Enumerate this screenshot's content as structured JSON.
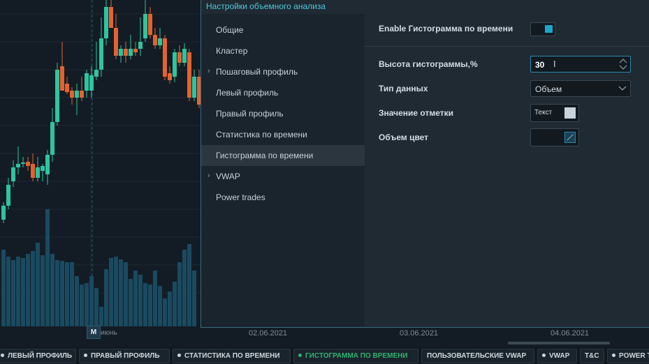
{
  "dialog": {
    "title": "Настройки объемного анализа",
    "sidebar": [
      {
        "label": "Общие",
        "expandable": false,
        "active": false
      },
      {
        "label": "Кластер",
        "expandable": false,
        "active": false
      },
      {
        "label": "Пошаговый профиль",
        "expandable": true,
        "active": false
      },
      {
        "label": "Левый профиль",
        "expandable": false,
        "active": false
      },
      {
        "label": "Правый профиль",
        "expandable": false,
        "active": false
      },
      {
        "label": "Статистика по времени",
        "expandable": false,
        "active": false
      },
      {
        "label": "Гистограмма по времени",
        "expandable": false,
        "active": true
      },
      {
        "label": "VWAP",
        "expandable": true,
        "active": false
      },
      {
        "label": "Power trades",
        "expandable": false,
        "active": false
      }
    ],
    "fields": {
      "enable_label": "Enable Гистограмма по времени",
      "enable_on": true,
      "height_label": "Высота гистограммы,%",
      "height_value": "30",
      "datatype_label": "Тип данных",
      "datatype_value": "Объем",
      "mark_label": "Значение отметки",
      "mark_text": "Текст",
      "mark_color": "#c9d3dc",
      "volume_color_label": "Объем цвет"
    }
  },
  "chart": {
    "x_labels": [
      "02.06.2021",
      "03.06.2021",
      "04.06.2021"
    ],
    "badge": "M",
    "month_label": "июнь",
    "colors": {
      "up": "#2ec4a0",
      "down": "#e5622f",
      "volume": "#1a4a60"
    }
  },
  "tabs": [
    {
      "label": "ЛЕВЫЙ ПРОФИЛЬ",
      "active": false
    },
    {
      "label": "ПРАВЫЙ ПРОФИЛЬ",
      "active": false
    },
    {
      "label": "СТАТИСТИКА ПО ВРЕМЕНИ",
      "active": false
    },
    {
      "label": "ГИСТОГРАММА ПО ВРЕМЕНИ",
      "active": true
    },
    {
      "label": "ПОЛЬЗОВАТЕЛЬСКИЕ VWAP",
      "active": false
    },
    {
      "label": "VWAP",
      "active": false
    },
    {
      "label": "T&C",
      "active": false
    },
    {
      "label": "POWER T",
      "active": false
    }
  ]
}
